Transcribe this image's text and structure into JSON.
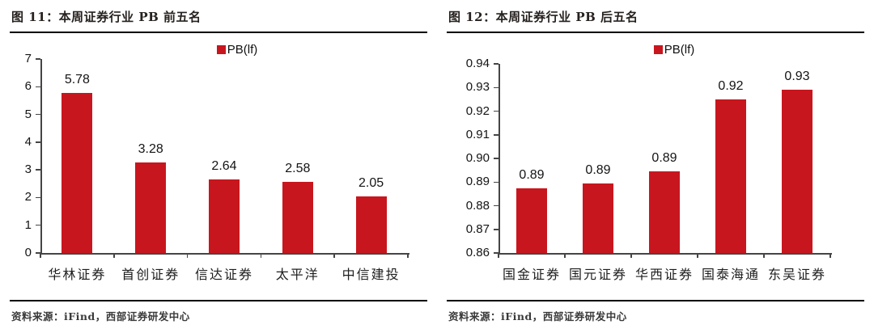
{
  "colors": {
    "bar_red": "#C8161E",
    "axis_gray": "#454545",
    "rule_black": "#000000",
    "text_dark": "#141414"
  },
  "chart_data": [
    {
      "type": "bar",
      "title": "图 11：本周证券行业 PB 前五名",
      "legend": "PB(lf)",
      "legend_position": "top-center",
      "grid": false,
      "categories": [
        "华林证券",
        "首创证券",
        "信达证券",
        "太平洋",
        "中信建投"
      ],
      "values": [
        5.78,
        3.28,
        2.64,
        2.58,
        2.05
      ],
      "data_labels": [
        "5.78",
        "3.28",
        "2.64",
        "2.58",
        "2.05"
      ],
      "ylim": [
        0,
        7
      ],
      "ytick_step": 1,
      "ytick_decimals": 0,
      "bar_color": "#C8161E",
      "source": "资料来源：iFind，西部证券研发中心"
    },
    {
      "type": "bar",
      "title": "图 12：本周证券行业 PB 后五名",
      "legend": "PB(lf)",
      "legend_position": "top-center",
      "grid": false,
      "categories": [
        "国金证券",
        "国元证券",
        "华西证券",
        "国泰海通",
        "东吴证券"
      ],
      "values": [
        0.89,
        0.89,
        0.89,
        0.92,
        0.93
      ],
      "precise_values": [
        0.8875,
        0.8895,
        0.8945,
        0.925,
        0.929
      ],
      "data_labels": [
        "0.89",
        "0.89",
        "0.89",
        "0.92",
        "0.93"
      ],
      "ylim": [
        0.86,
        0.94
      ],
      "ytick_step": 0.01,
      "ytick_decimals": 2,
      "bar_color": "#C8161E",
      "source": "资料来源：iFind，西部证券研发中心"
    }
  ]
}
